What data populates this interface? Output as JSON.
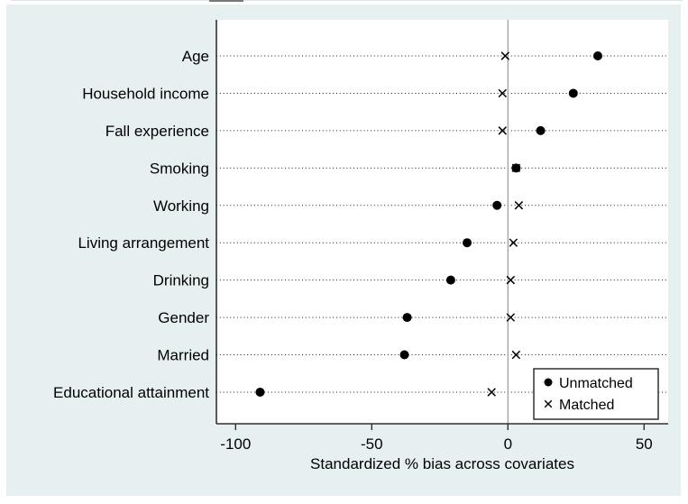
{
  "window": {
    "background_color": "#ffffff",
    "figure_background_color": "#e7f0f1",
    "plot_background_color": "#ffffff"
  },
  "colors": {
    "marker": "#000000",
    "axis_line": "#303030",
    "zero_reference_line": "#9a9a9a",
    "grid_dotted_line": "#1a1a1a",
    "text": "#000000",
    "legend_border": "#303030",
    "legend_background": "#ffffff"
  },
  "chart_data": {
    "type": "scatter",
    "variant": "horizontal dot plot (propensity-score covariate balance)",
    "title": "",
    "xlabel": "Standardized % bias across covariates",
    "ylabel": "",
    "categories": [
      "Age",
      "Household income",
      "Fall experience",
      "Smoking",
      "Working",
      "Living arrangement",
      "Drinking",
      "Gender",
      "Married",
      "Educational attainment"
    ],
    "series": [
      {
        "name": "Unmatched",
        "marker": "filled-circle",
        "values": [
          33,
          24,
          12,
          3,
          -4,
          -15,
          -21,
          -37,
          -38,
          -91
        ]
      },
      {
        "name": "Matched",
        "marker": "x-cross",
        "values": [
          -1,
          -2,
          -2,
          3,
          4,
          2,
          1,
          1,
          3,
          -6
        ]
      }
    ],
    "xticks": [
      -100,
      -50,
      0,
      50
    ],
    "xlim": [
      -107,
      59
    ],
    "grid": "horizontal dotted line per category, full plot width",
    "zero_reference_line": 0,
    "legend_position": "inside bottom-right"
  }
}
